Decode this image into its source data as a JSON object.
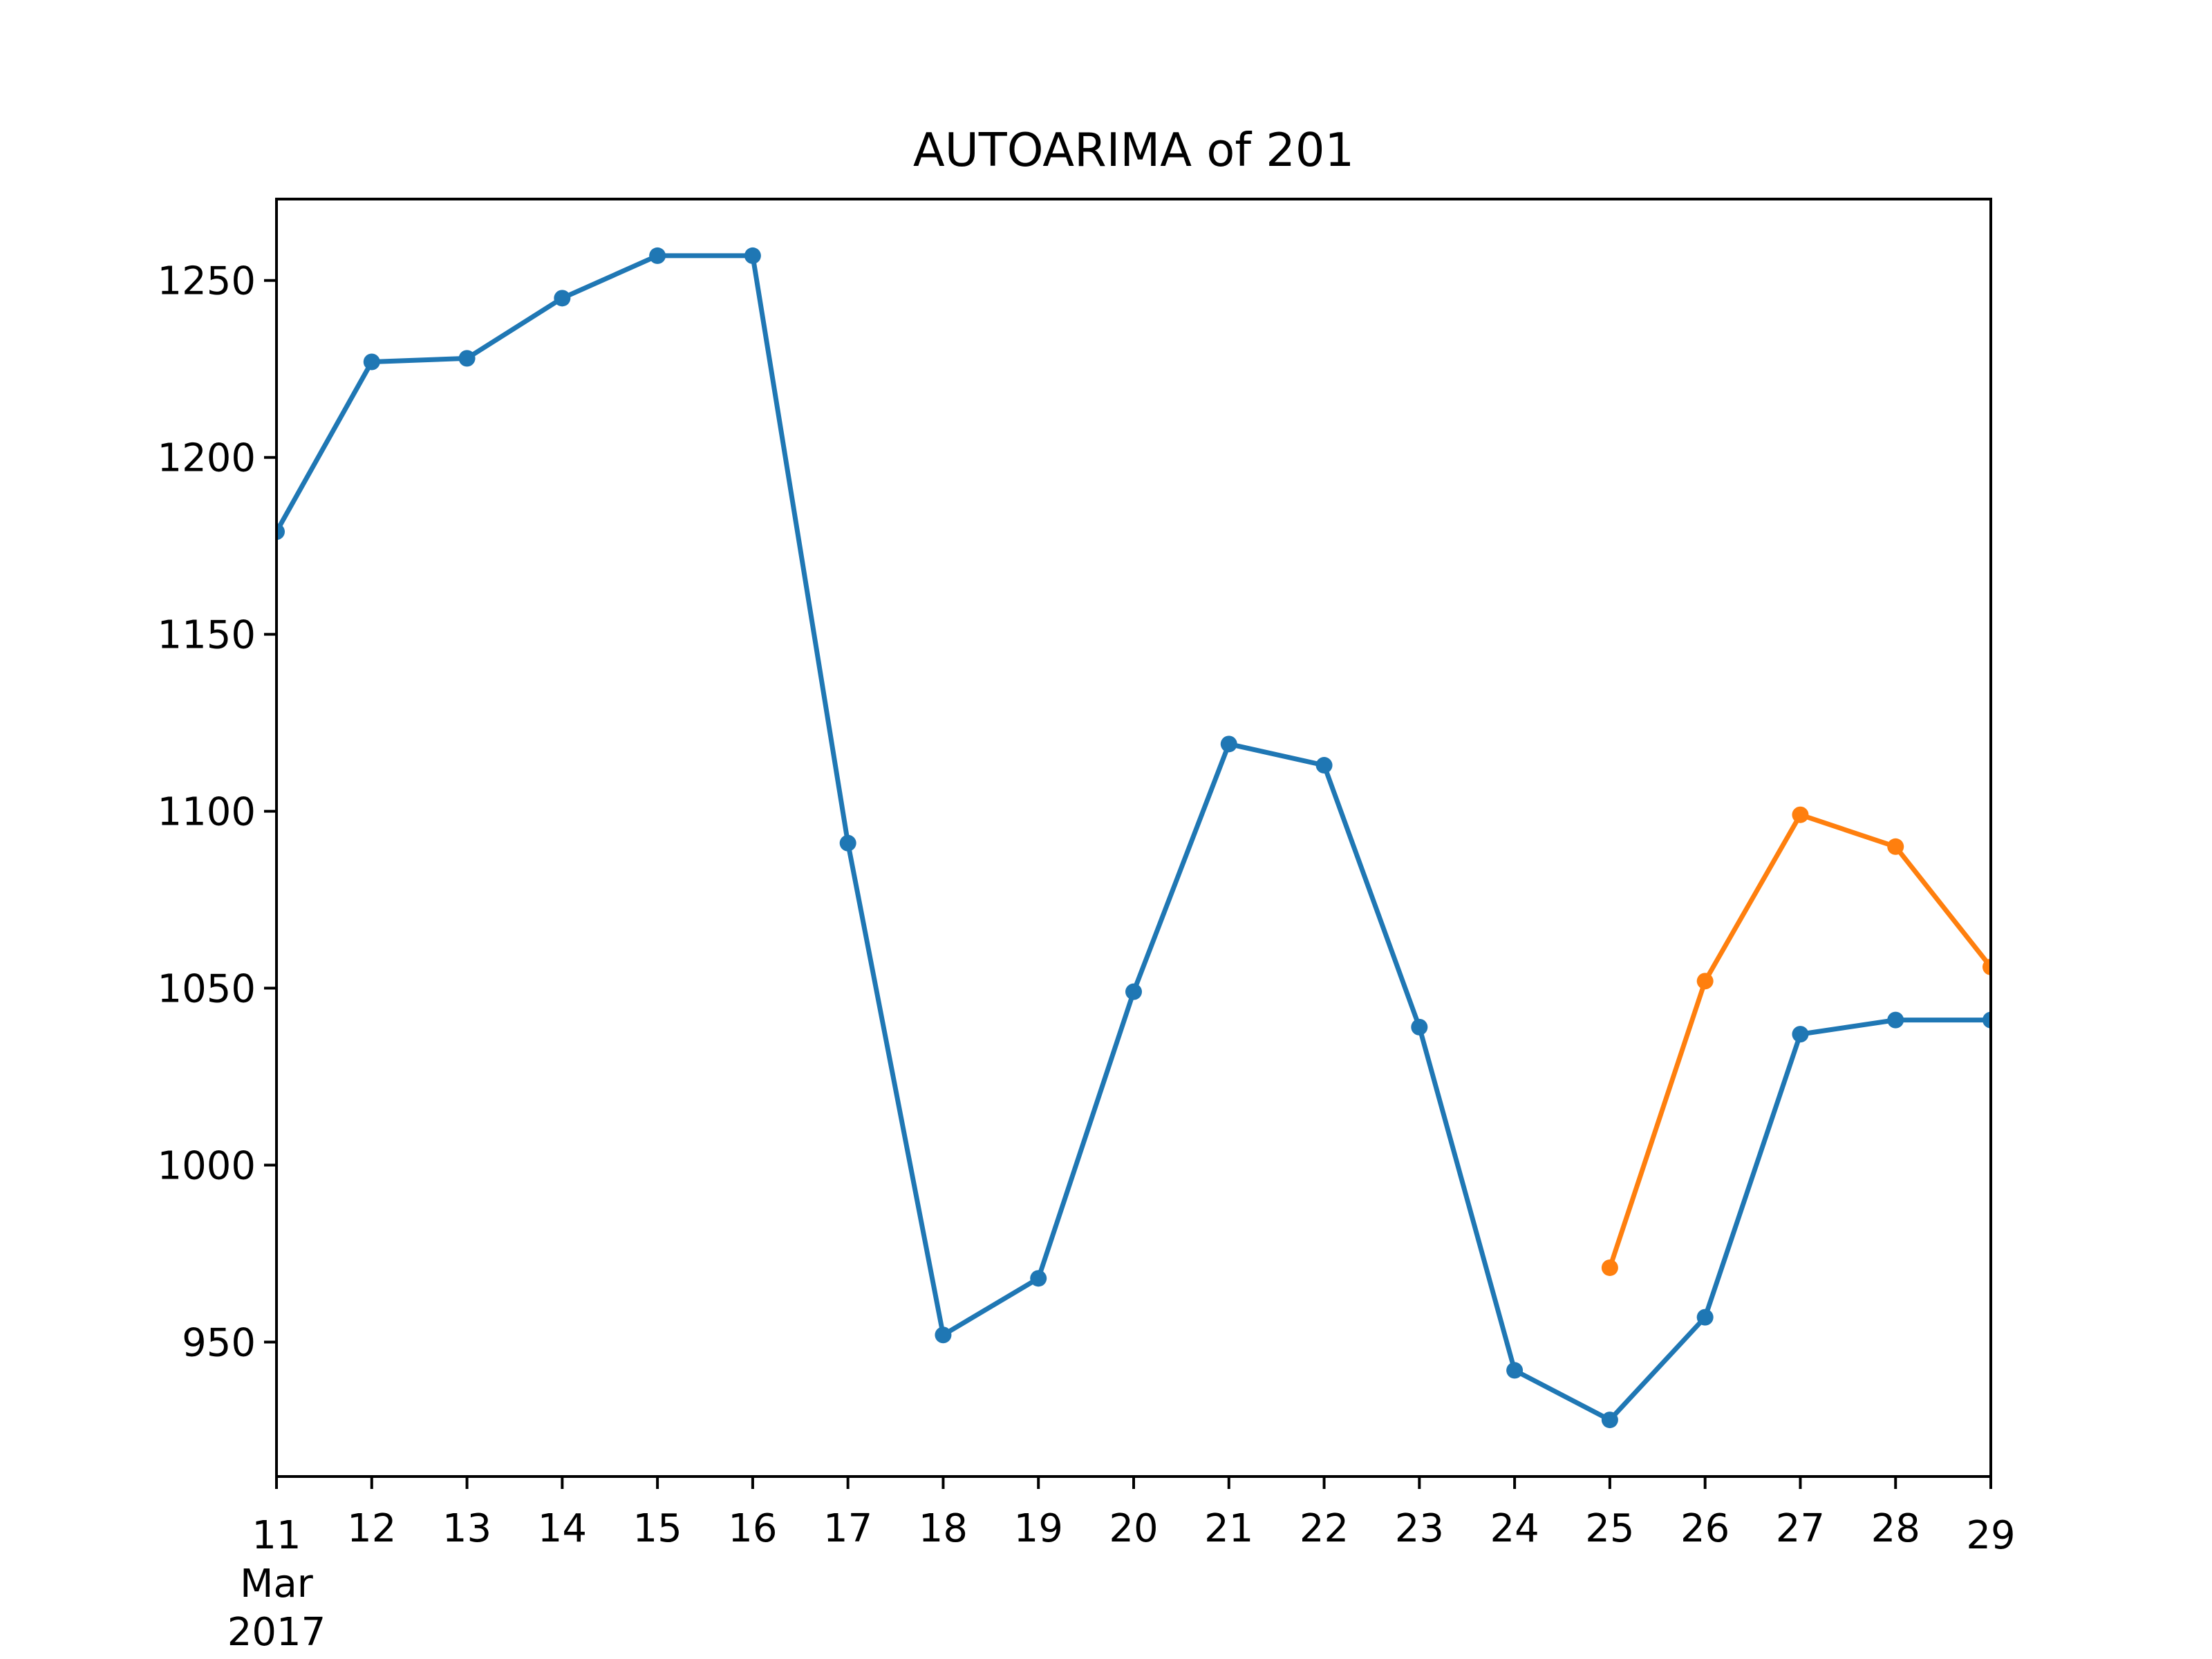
{
  "chart_data": {
    "type": "line",
    "title": "AUTOARIMA of 201",
    "xlabel": "",
    "ylabel": "",
    "x": [
      "11",
      "12",
      "13",
      "14",
      "15",
      "16",
      "17",
      "18",
      "19",
      "20",
      "21",
      "22",
      "23",
      "24",
      "25",
      "26",
      "27",
      "28",
      "29"
    ],
    "x_dates": [
      "2017-03-11",
      "2017-03-12",
      "2017-03-13",
      "2017-03-14",
      "2017-03-15",
      "2017-03-16",
      "2017-03-17",
      "2017-03-18",
      "2017-03-19",
      "2017-03-20",
      "2017-03-21",
      "2017-03-22",
      "2017-03-23",
      "2017-03-24",
      "2017-03-25",
      "2017-03-26",
      "2017-03-27",
      "2017-03-28",
      "2017-03-29"
    ],
    "x_secondary_label": [
      "Mar",
      "2017"
    ],
    "ylim": [
      912,
      1273
    ],
    "yticks": [
      950,
      1000,
      1050,
      1100,
      1150,
      1200,
      1250
    ],
    "grid": false,
    "legend": "none",
    "series": [
      {
        "color": "#1f77b4",
        "x": [
          "11",
          "12",
          "13",
          "14",
          "15",
          "16",
          "17",
          "18",
          "19",
          "20",
          "21",
          "22",
          "23",
          "24",
          "25",
          "26",
          "27",
          "28",
          "29"
        ],
        "values": [
          1179,
          1227,
          1228,
          1245,
          1257,
          1257,
          1091,
          952,
          968,
          1049,
          1119,
          1113,
          1039,
          942,
          928,
          957,
          1037,
          1041,
          1041
        ]
      },
      {
        "color": "#ff7f0e",
        "x": [
          "25",
          "26",
          "27",
          "28",
          "29"
        ],
        "values": [
          971,
          1052,
          1099,
          1090,
          1056
        ]
      }
    ]
  }
}
